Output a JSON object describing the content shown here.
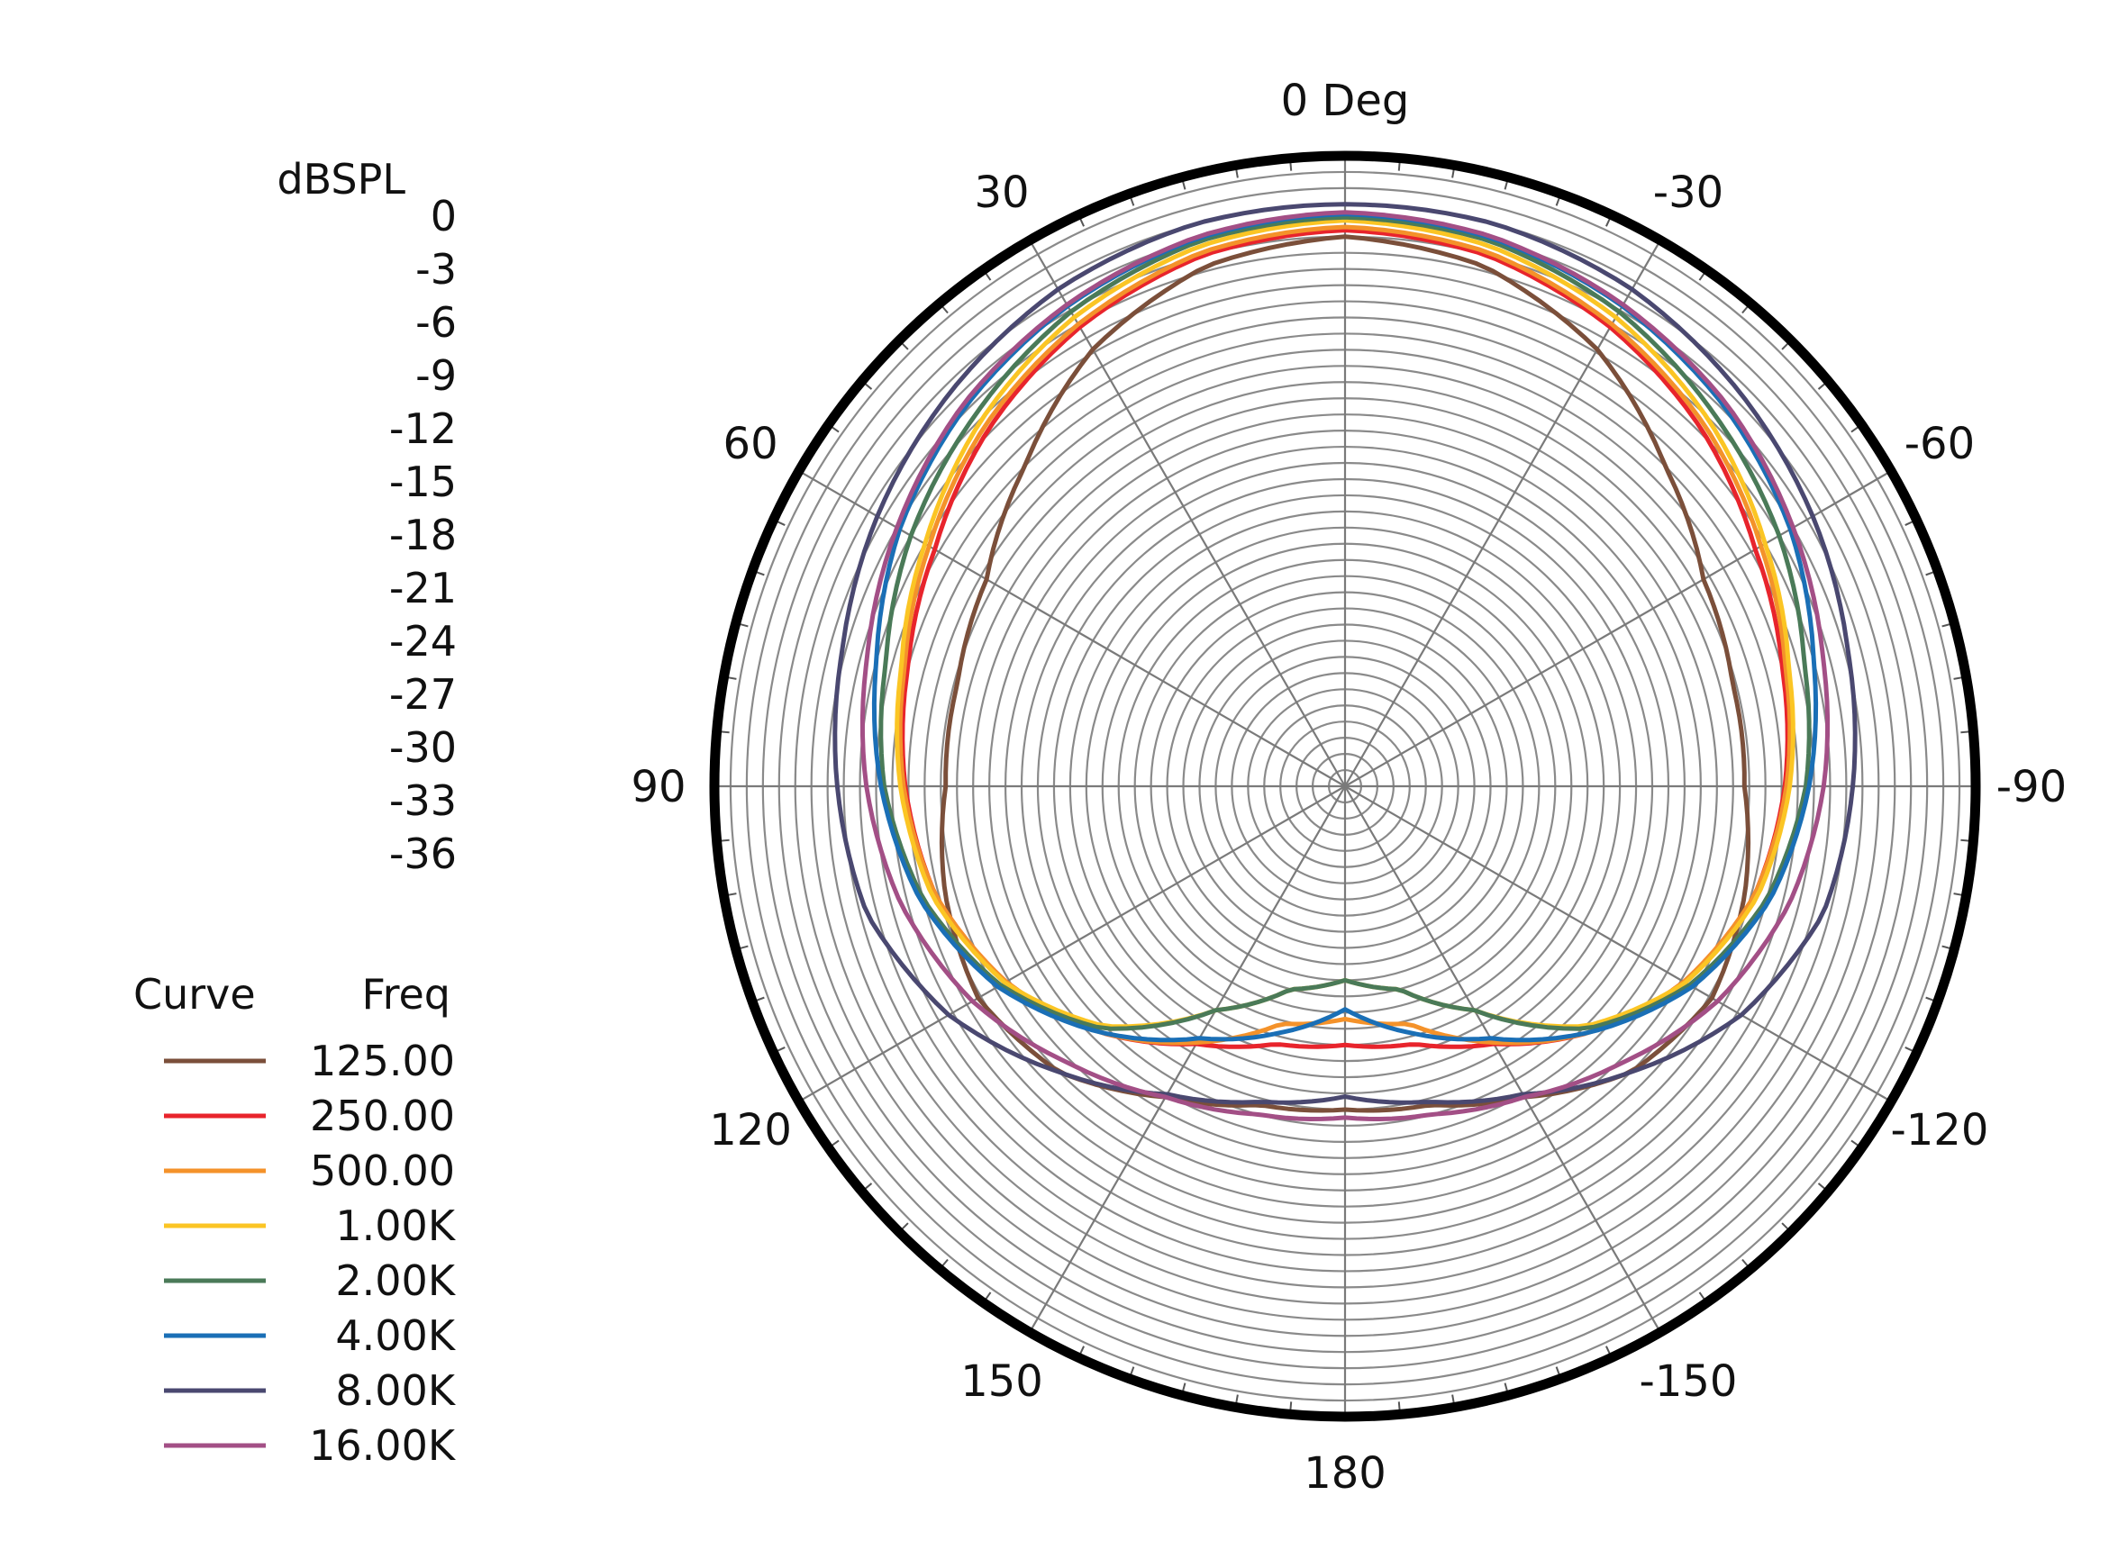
{
  "chart_data": {
    "type": "polar",
    "unit_label": "dBSPL",
    "radial_ticks": [
      "0",
      "-3",
      "-6",
      "-9",
      "-12",
      "-15",
      "-18",
      "-21",
      "-24",
      "-27",
      "-30",
      "-33",
      "-36"
    ],
    "rlim": [
      -36,
      0
    ],
    "angle_labels": [
      {
        "angle": 0,
        "text": "0 Deg"
      },
      {
        "angle": 30,
        "text": "30"
      },
      {
        "angle": -30,
        "text": "-30"
      },
      {
        "angle": 60,
        "text": "60"
      },
      {
        "angle": -60,
        "text": "-60"
      },
      {
        "angle": 90,
        "text": "90"
      },
      {
        "angle": -90,
        "text": "-90"
      },
      {
        "angle": 120,
        "text": "120"
      },
      {
        "angle": -120,
        "text": "-120"
      },
      {
        "angle": 150,
        "text": "150"
      },
      {
        "angle": -150,
        "text": "-150"
      },
      {
        "angle": 180,
        "text": "180"
      }
    ],
    "grid": true,
    "legend": {
      "position": "left",
      "headers": {
        "curve": "Curve",
        "freq": "Freq"
      }
    },
    "angles": [
      0,
      15,
      30,
      45,
      60,
      75,
      90,
      105,
      120,
      135,
      150,
      165,
      180
    ],
    "series": [
      {
        "name": "125.00",
        "color": "#7b4f3a",
        "values": [
          -2.0,
          -2.7,
          -4.8,
          -8.0,
          -10.4,
          -11.2,
          -11.3,
          -10.4,
          -9.8,
          -11.0,
          -13.8,
          -15.6,
          -16.0
        ]
      },
      {
        "name": "250.00",
        "color": "#e8242c",
        "values": [
          -1.6,
          -2.0,
          -3.2,
          -4.8,
          -6.7,
          -8.0,
          -8.8,
          -9.8,
          -11.8,
          -14.5,
          -17.6,
          -19.5,
          -20.0
        ]
      },
      {
        "name": "500.00",
        "color": "#f4922a",
        "values": [
          -1.4,
          -1.8,
          -3.0,
          -4.5,
          -6.3,
          -7.8,
          -8.7,
          -9.8,
          -11.8,
          -14.5,
          -17.7,
          -20.8,
          -21.6
        ]
      },
      {
        "name": "1.00K",
        "color": "#fbc524",
        "values": [
          -1.0,
          -1.4,
          -2.5,
          -4.1,
          -6.0,
          -7.6,
          -8.5,
          -9.6,
          -11.7,
          -15.0,
          -20.0,
          -23.0,
          -24.0
        ]
      },
      {
        "name": "2.00K",
        "color": "#4a7a58",
        "values": [
          -0.8,
          -1.1,
          -2.1,
          -3.6,
          -5.0,
          -6.6,
          -7.5,
          -9.0,
          -11.4,
          -14.8,
          -20.0,
          -23.0,
          -24.0
        ]
      },
      {
        "name": "4.00K",
        "color": "#1a6fb6",
        "values": [
          -0.6,
          -0.9,
          -1.7,
          -2.8,
          -4.2,
          -6.0,
          -7.3,
          -8.8,
          -11.2,
          -14.5,
          -18.0,
          -20.2,
          -22.2
        ]
      },
      {
        "name": "8.00K",
        "color": "#4a4870",
        "values": [
          0.0,
          0.0,
          -0.5,
          -1.5,
          -2.6,
          -3.8,
          -4.6,
          -5.4,
          -7.7,
          -11.0,
          -14.0,
          -15.8,
          -16.8
        ]
      },
      {
        "name": "16.00K",
        "color": "#a34f86",
        "values": [
          -0.5,
          -0.8,
          -1.6,
          -2.6,
          -4.0,
          -5.4,
          -6.4,
          -7.6,
          -9.4,
          -11.8,
          -13.8,
          -15.0,
          -15.5
        ]
      }
    ]
  }
}
